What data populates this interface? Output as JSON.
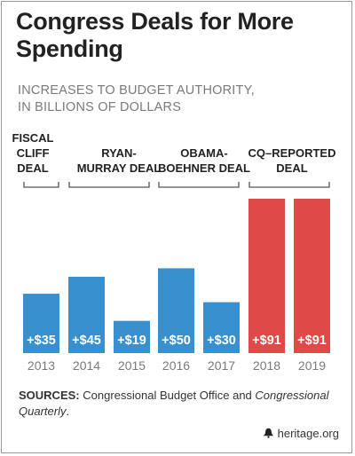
{
  "title": "Congress Deals for More Spending",
  "subtitle_line1": "INCREASES TO BUDGET AUTHORITY,",
  "subtitle_line2": "IN BILLIONS OF DOLLARS",
  "deals": [
    {
      "line1": "FISCAL",
      "line2": "CLIFF",
      "line3": "DEAL"
    },
    {
      "line1": "RYAN-",
      "line2": "MURRAY DEAL"
    },
    {
      "line1": "OBAMA-",
      "line2": "BOEHNER DEAL"
    },
    {
      "line1_em": "CQ",
      "line1_rest": "–REPORTED",
      "line2": "DEAL"
    }
  ],
  "colors": {
    "enacted": "#3990cf",
    "reported": "#df4a48",
    "bracket": "#555555",
    "axis_text": "#7a7a7a"
  },
  "chart_data": {
    "type": "bar",
    "title": "Congress Deals for More Spending",
    "subtitle": "INCREASES TO BUDGET AUTHORITY, IN BILLIONS OF DOLLARS",
    "categories": [
      "2013",
      "2014",
      "2015",
      "2016",
      "2017",
      "2018",
      "2019"
    ],
    "values": [
      35,
      45,
      19,
      50,
      30,
      91,
      91
    ],
    "value_labels": [
      "+$35",
      "+$45",
      "+$19",
      "+$50",
      "+$30",
      "+$91",
      "+$91"
    ],
    "bar_colors": [
      "#3990cf",
      "#3990cf",
      "#3990cf",
      "#3990cf",
      "#3990cf",
      "#df4a48",
      "#df4a48"
    ],
    "groups": [
      {
        "label": "FISCAL CLIFF DEAL",
        "categories": [
          "2013"
        ]
      },
      {
        "label": "RYAN-MURRAY DEAL",
        "categories": [
          "2014",
          "2015"
        ]
      },
      {
        "label": "OBAMA-BOEHNER DEAL",
        "categories": [
          "2016",
          "2017"
        ]
      },
      {
        "label": "CQ–REPORTED DEAL",
        "categories": [
          "2018",
          "2019"
        ]
      }
    ],
    "ylim": [
      0,
      91
    ],
    "grid": false,
    "legend": "none"
  },
  "source": {
    "label": "SOURCES:",
    "text_a": " Congressional Budget Office and ",
    "text_em": "Congressional Quarterly",
    "text_b": "."
  },
  "brand": "heritage.org"
}
